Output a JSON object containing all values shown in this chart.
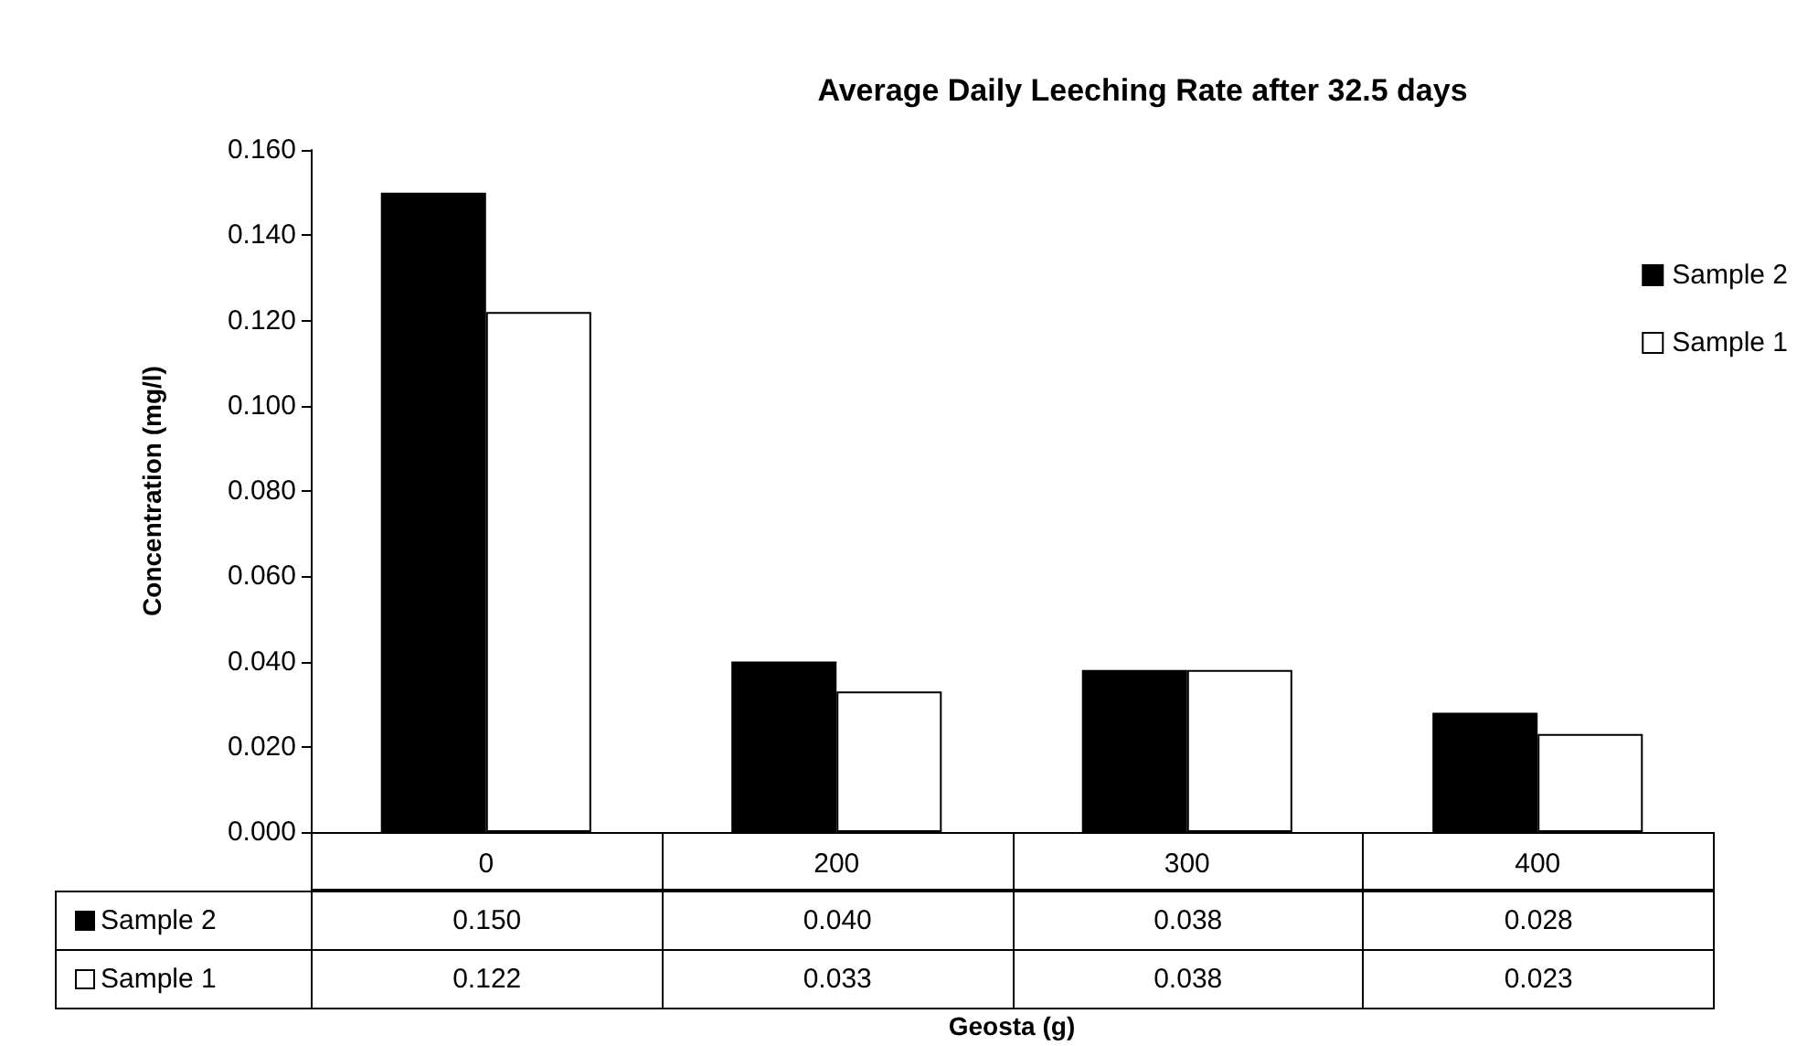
{
  "chart_data": {
    "type": "bar",
    "title": "Average Daily Leeching Rate after 32.5 days",
    "annotations": [
      "Geosta (g)"
    ],
    "ylabel": "Concentration (mg/l)",
    "categories": [
      "0",
      "200",
      "300",
      "400"
    ],
    "series": [
      {
        "name": "Sample 2",
        "color": "#000000",
        "values": [
          0.15,
          0.04,
          0.038,
          0.028
        ],
        "value_labels": [
          "0.150",
          "0.040",
          "0.038",
          "0.028"
        ]
      },
      {
        "name": "Sample 1",
        "color": "#ffffff",
        "values": [
          0.122,
          0.033,
          0.038,
          0.023
        ],
        "value_labels": [
          "0.122",
          "0.033",
          "0.038",
          "0.023"
        ]
      }
    ],
    "ylim": [
      0,
      0.16
    ],
    "yticks": [
      {
        "value": 0,
        "label": "0.000"
      },
      {
        "value": 0.02,
        "label": "0.020"
      },
      {
        "value": 0.04,
        "label": "0.040"
      },
      {
        "value": 0.06,
        "label": "0.060"
      },
      {
        "value": 0.08,
        "label": "0.080"
      },
      {
        "value": 0.1,
        "label": "0.100"
      },
      {
        "value": 0.12,
        "label": "0.120"
      },
      {
        "value": 0.14,
        "label": "0.140"
      },
      {
        "value": 0.16,
        "label": "0.160"
      }
    ],
    "grid": false,
    "legend": "top right"
  }
}
